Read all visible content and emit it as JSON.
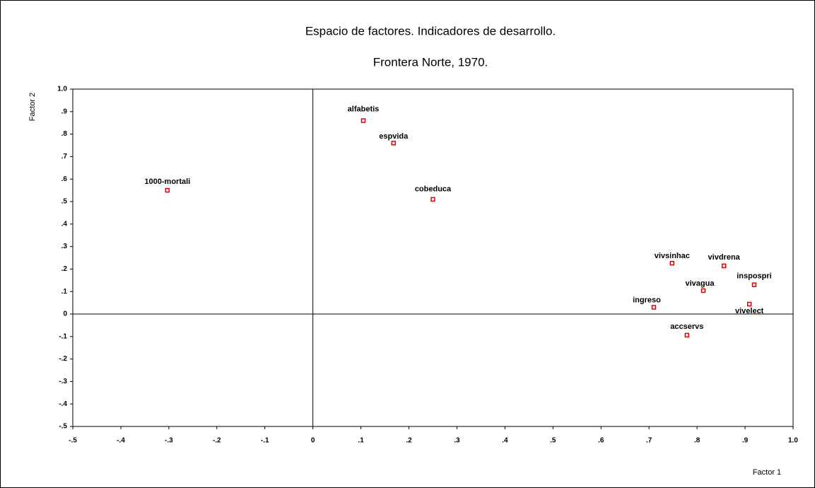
{
  "chart_data": {
    "type": "scatter",
    "title": "Espacio de factores. Indicadores de desarrollo.",
    "subtitle": "Frontera Norte, 1970.",
    "x_label": "Factor 1",
    "y_label": "Factor 2",
    "color": "#e00000",
    "point_labels": [
      "1000-mortali",
      "alfabetis",
      "espvida",
      "cobeduca",
      "vivsinhac",
      "vivdrena",
      "inspospri",
      "vivagua",
      "ingreso",
      "vivelect",
      "accservs"
    ],
    "x": [
      -0.303,
      0.105,
      0.168,
      0.25,
      0.748,
      0.856,
      0.919,
      0.813,
      0.71,
      0.909,
      0.779
    ],
    "values": [
      0.55,
      0.86,
      0.76,
      0.51,
      0.226,
      0.214,
      0.13,
      0.104,
      0.03,
      0.044,
      -0.094
    ],
    "xlim": [
      -0.5,
      1.0
    ],
    "ylim": [
      -0.5,
      1.0
    ],
    "xticks": [
      {
        "value": -0.5,
        "label": "-.5"
      },
      {
        "value": -0.4,
        "label": "-.4"
      },
      {
        "value": -0.3,
        "label": "-.3"
      },
      {
        "value": -0.2,
        "label": "-.2"
      },
      {
        "value": -0.1,
        "label": "-.1"
      },
      0,
      {
        "value": 0.1,
        "label": ".1"
      },
      {
        "value": 0.2,
        "label": ".2"
      },
      {
        "value": 0.3,
        "label": ".3"
      },
      {
        "value": 0.4,
        "label": ".4"
      },
      {
        "value": 0.5,
        "label": ".5"
      },
      {
        "value": 0.6,
        "label": ".6"
      },
      {
        "value": 0.7,
        "label": ".7"
      },
      {
        "value": 0.8,
        "label": ".8"
      },
      {
        "value": 0.9,
        "label": ".9"
      },
      {
        "value": 1.0,
        "label": "1.0"
      }
    ],
    "yticks": [
      {
        "value": -0.5,
        "label": "-.5"
      },
      {
        "value": -0.4,
        "label": "-.4"
      },
      {
        "value": -0.3,
        "label": "-.3"
      },
      {
        "value": -0.2,
        "label": "-.2"
      },
      {
        "value": -0.1,
        "label": "-.1"
      },
      0,
      {
        "value": 0.1,
        "label": ".1"
      },
      {
        "value": 0.2,
        "label": ".2"
      },
      {
        "value": 0.3,
        "label": ".3"
      },
      {
        "value": 0.4,
        "label": ".4"
      },
      {
        "value": 0.5,
        "label": ".5"
      },
      {
        "value": 0.6,
        "label": ".6"
      },
      {
        "value": 0.7,
        "label": ".7"
      },
      {
        "value": 0.8,
        "label": ".8"
      },
      {
        "value": 0.9,
        "label": ".9"
      },
      {
        "value": 1.0,
        "label": "1.0"
      }
    ]
  }
}
